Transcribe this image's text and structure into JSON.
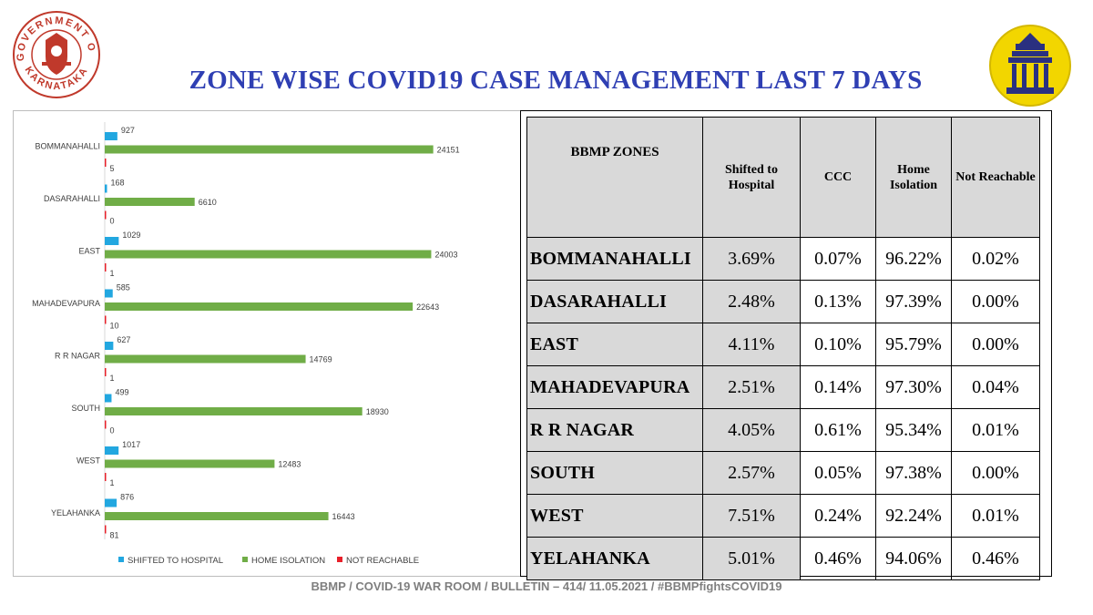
{
  "header": {
    "title": "ZONE WISE COVID19 CASE MANAGEMENT LAST 7 DAYS",
    "left_logo": {
      "icon": "karnataka-government-seal-icon",
      "text": "GOVERNMENT OF KARNATAKA",
      "color": "#c0392b"
    },
    "right_logo": {
      "icon": "bbmp-emblem-icon",
      "color": "#f2d600"
    }
  },
  "colors": {
    "shifted": "#22a7e0",
    "home": "#70ad47",
    "not_reachable": "#e8202a",
    "title": "#2f3fb3"
  },
  "chart_data": {
    "type": "bar",
    "orientation": "horizontal",
    "categories": [
      "BOMMANAHALLI",
      "DASARAHALLI",
      "EAST",
      "MAHADEVAPURA",
      "R R NAGAR",
      "SOUTH",
      "WEST",
      "YELAHANKA"
    ],
    "series": [
      {
        "name": "SHIFTED TO HOSPITAL",
        "values": [
          927,
          168,
          1029,
          585,
          627,
          499,
          1017,
          876
        ]
      },
      {
        "name": "HOME ISOLATION",
        "values": [
          24151,
          6610,
          24003,
          22643,
          14769,
          18930,
          12483,
          16443
        ]
      },
      {
        "name": "NOT REACHABLE",
        "values": [
          5,
          0,
          1,
          10,
          1,
          0,
          1,
          81
        ]
      }
    ],
    "xlim": [
      0,
      30000
    ],
    "legend": "bottom",
    "grid": false
  },
  "table": {
    "headers": [
      "BBMP ZONES",
      "Shifted to Hospital",
      "CCC",
      "Home Isolation",
      "Not Reachable"
    ],
    "rows": [
      {
        "zone": "BOMMANAHALLI",
        "shifted": "3.69%",
        "ccc": "0.07%",
        "home": "96.22%",
        "not_reachable": "0.02%"
      },
      {
        "zone": "DASARAHALLI",
        "shifted": "2.48%",
        "ccc": "0.13%",
        "home": "97.39%",
        "not_reachable": "0.00%"
      },
      {
        "zone": "EAST",
        "shifted": "4.11%",
        "ccc": "0.10%",
        "home": "95.79%",
        "not_reachable": "0.00%"
      },
      {
        "zone": "MAHADEVAPURA",
        "shifted": "2.51%",
        "ccc": "0.14%",
        "home": "97.30%",
        "not_reachable": "0.04%"
      },
      {
        "zone": "R R NAGAR",
        "shifted": "4.05%",
        "ccc": "0.61%",
        "home": "95.34%",
        "not_reachable": "0.01%"
      },
      {
        "zone": "SOUTH",
        "shifted": "2.57%",
        "ccc": "0.05%",
        "home": "97.38%",
        "not_reachable": "0.00%"
      },
      {
        "zone": "WEST",
        "shifted": "7.51%",
        "ccc": "0.24%",
        "home": "92.24%",
        "not_reachable": "0.01%"
      },
      {
        "zone": "YELAHANKA",
        "shifted": "5.01%",
        "ccc": "0.46%",
        "home": "94.06%",
        "not_reachable": "0.46%"
      }
    ]
  },
  "footer": {
    "text": "BBMP / COVID-19 WAR ROOM / BULLETIN – 414/ 11.05.2021 / #BBMPfightsCOVID19"
  }
}
